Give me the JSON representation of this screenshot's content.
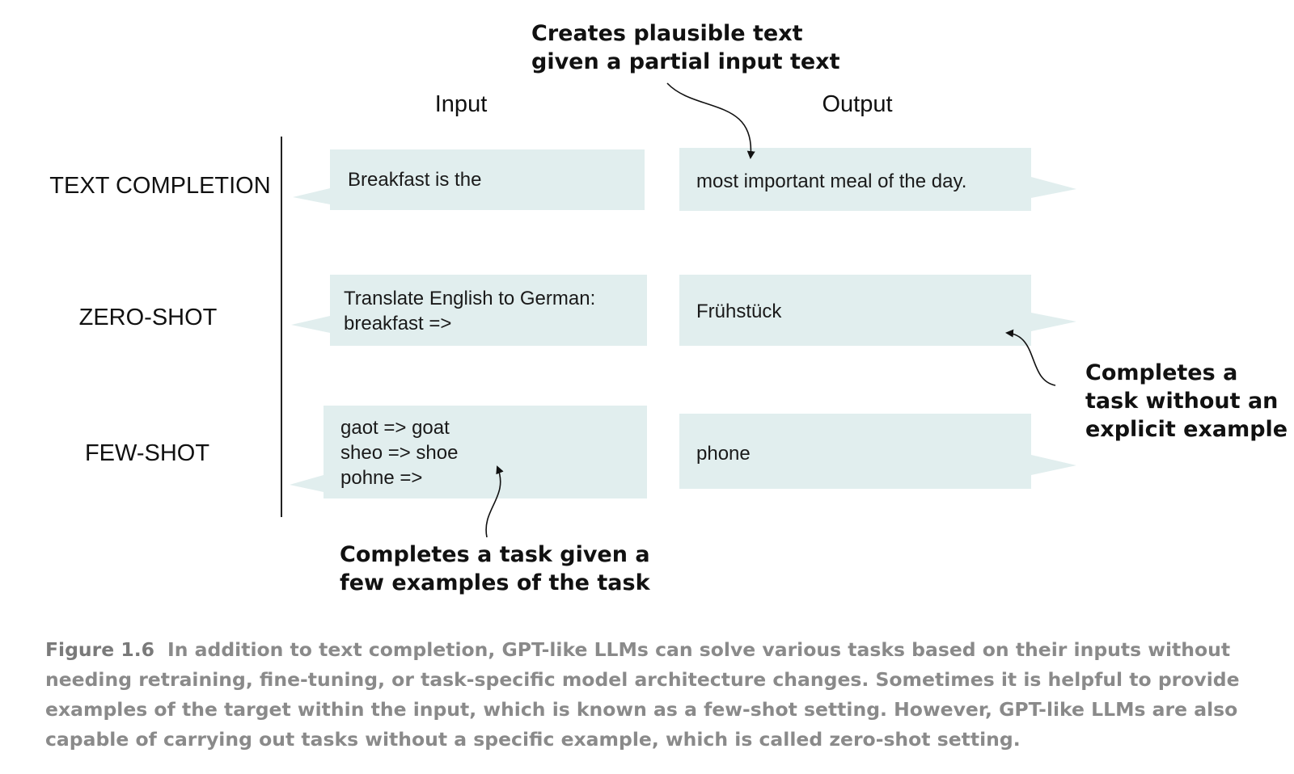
{
  "headers": {
    "input": "Input",
    "output": "Output"
  },
  "rows": [
    {
      "label": "TEXT COMPLETION",
      "input": [
        "Breakfast is the"
      ],
      "output": [
        "most important meal of the day."
      ]
    },
    {
      "label": "ZERO-SHOT",
      "input": [
        "Translate English to German:",
        "breakfast =>"
      ],
      "output": [
        "Frühstück"
      ]
    },
    {
      "label": "FEW-SHOT",
      "input": [
        "gaot => goat",
        "sheo => shoe",
        "pohne =>"
      ],
      "output": [
        "phone"
      ]
    }
  ],
  "annotations": {
    "top": [
      "Creates plausible text",
      "given a partial input text"
    ],
    "right": [
      "Completes a",
      "task without an",
      "explicit example"
    ],
    "bottom": [
      "Completes a task given a",
      "few examples of the task"
    ]
  },
  "caption": {
    "number": "Figure 1.6",
    "text": "In addition to text completion, GPT-like LLMs can solve various tasks based on their inputs without needing retraining, fine-tuning, or task-specific model architecture changes. Sometimes it is helpful to provide examples of the target within the input, which is known as a few-shot setting. However, GPT-like LLMs are also capable of carrying out tasks without a specific example, which is called zero-shot setting."
  },
  "colors": {
    "bubble": "#e1eeee",
    "caption": "#8a8a8a"
  }
}
